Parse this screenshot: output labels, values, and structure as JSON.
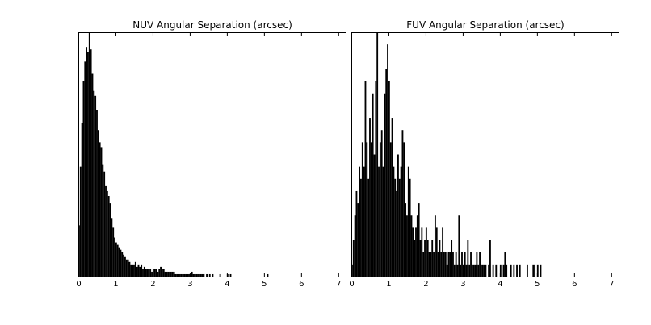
{
  "chart_data": [
    {
      "type": "bar",
      "subtype": "histogram",
      "title": "NUV Angular Separation (arcsec)",
      "xlabel": "",
      "ylabel": "",
      "xlim": [
        0,
        7.2
      ],
      "ylim": [
        0,
        1
      ],
      "y_tick_labels_shown": false,
      "grid": false,
      "bin_width": 0.04,
      "x_ticks": [
        "0",
        "1",
        "2",
        "3",
        "4",
        "5",
        "6",
        "7"
      ],
      "x": [
        0.02,
        0.06,
        0.1,
        0.14,
        0.18,
        0.22,
        0.26,
        0.3,
        0.34,
        0.38,
        0.42,
        0.46,
        0.5,
        0.54,
        0.58,
        0.62,
        0.66,
        0.7,
        0.74,
        0.78,
        0.82,
        0.86,
        0.9,
        0.94,
        0.98,
        1.02,
        1.06,
        1.1,
        1.14,
        1.18,
        1.22,
        1.26,
        1.3,
        1.34,
        1.38,
        1.42,
        1.46,
        1.5,
        1.54,
        1.58,
        1.62,
        1.66,
        1.7,
        1.74,
        1.78,
        1.82,
        1.86,
        1.9,
        1.94,
        1.98,
        2.02,
        2.06,
        2.1,
        2.14,
        2.18,
        2.22,
        2.26,
        2.3,
        2.34,
        2.38,
        2.42,
        2.46,
        2.5,
        2.54,
        2.58,
        2.62,
        2.66,
        2.7,
        2.74,
        2.78,
        2.82,
        2.86,
        2.9,
        2.94,
        2.98,
        3.02,
        3.06,
        3.1,
        3.14,
        3.18,
        3.22,
        3.26,
        3.3,
        3.34,
        3.38,
        3.42,
        3.46,
        3.5,
        3.54,
        3.58,
        3.62,
        3.66,
        3.7,
        3.74,
        3.78,
        3.82,
        3.86,
        3.9,
        3.94,
        3.98,
        4.02,
        4.06,
        4.1,
        4.14,
        4.18,
        4.22,
        4.26,
        4.3,
        4.34,
        4.38,
        4.42,
        4.46,
        4.5,
        4.54,
        4.58,
        4.62,
        4.66,
        4.7,
        4.74,
        4.78,
        4.82,
        4.86,
        4.9,
        4.94,
        4.98,
        5.02,
        5.06,
        5.1,
        5.14,
        5.18
      ],
      "values": [
        0.21,
        0.45,
        0.63,
        0.8,
        0.88,
        0.94,
        0.92,
        1.0,
        0.93,
        0.83,
        0.76,
        0.74,
        0.68,
        0.6,
        0.55,
        0.53,
        0.46,
        0.43,
        0.37,
        0.35,
        0.33,
        0.3,
        0.24,
        0.2,
        0.16,
        0.14,
        0.13,
        0.12,
        0.11,
        0.1,
        0.09,
        0.08,
        0.07,
        0.07,
        0.06,
        0.05,
        0.05,
        0.05,
        0.06,
        0.04,
        0.05,
        0.04,
        0.05,
        0.03,
        0.04,
        0.03,
        0.03,
        0.03,
        0.03,
        0.02,
        0.03,
        0.03,
        0.03,
        0.02,
        0.03,
        0.04,
        0.03,
        0.03,
        0.02,
        0.02,
        0.02,
        0.02,
        0.02,
        0.02,
        0.02,
        0.01,
        0.01,
        0.01,
        0.01,
        0.01,
        0.01,
        0.01,
        0.01,
        0.01,
        0.01,
        0.01,
        0.02,
        0.01,
        0.01,
        0.01,
        0.01,
        0.01,
        0.01,
        0.01,
        0.01,
        0.0,
        0.01,
        0.0,
        0.01,
        0.0,
        0.01,
        0.0,
        0.0,
        0.0,
        0.0,
        0.01,
        0.0,
        0.0,
        0.0,
        0.0,
        0.01,
        0.0,
        0.01,
        0.0,
        0.0,
        0.0,
        0.0,
        0.0,
        0.0,
        0.0,
        0.0,
        0.0,
        0.0,
        0.0,
        0.0,
        0.0,
        0.0,
        0.0,
        0.0,
        0.0,
        0.0,
        0.0,
        0.0,
        0.0,
        0.0,
        0.0,
        0.0,
        0.01,
        0.0,
        0.0
      ]
    },
    {
      "type": "bar",
      "subtype": "histogram",
      "title": "FUV Angular Separation (arcsec)",
      "xlabel": "",
      "ylabel": "",
      "xlim": [
        0,
        7.2
      ],
      "ylim": [
        0,
        1
      ],
      "y_tick_labels_shown": false,
      "grid": false,
      "bin_width": 0.04,
      "x_ticks": [
        "0",
        "1",
        "2",
        "3",
        "4",
        "5",
        "6",
        "7"
      ],
      "x": [
        0.02,
        0.06,
        0.1,
        0.14,
        0.18,
        0.22,
        0.26,
        0.3,
        0.34,
        0.38,
        0.42,
        0.46,
        0.5,
        0.54,
        0.58,
        0.62,
        0.66,
        0.7,
        0.74,
        0.78,
        0.82,
        0.86,
        0.9,
        0.94,
        0.98,
        1.02,
        1.06,
        1.1,
        1.14,
        1.18,
        1.22,
        1.26,
        1.3,
        1.34,
        1.38,
        1.42,
        1.46,
        1.5,
        1.54,
        1.58,
        1.62,
        1.66,
        1.7,
        1.74,
        1.78,
        1.82,
        1.86,
        1.9,
        1.94,
        1.98,
        2.02,
        2.06,
        2.1,
        2.14,
        2.18,
        2.22,
        2.26,
        2.3,
        2.34,
        2.38,
        2.42,
        2.46,
        2.5,
        2.54,
        2.58,
        2.62,
        2.66,
        2.7,
        2.74,
        2.78,
        2.82,
        2.86,
        2.9,
        2.94,
        2.98,
        3.02,
        3.06,
        3.1,
        3.14,
        3.18,
        3.22,
        3.26,
        3.3,
        3.34,
        3.38,
        3.42,
        3.46,
        3.5,
        3.54,
        3.58,
        3.62,
        3.66,
        3.7,
        3.74,
        3.78,
        3.82,
        3.86,
        3.9,
        3.94,
        3.98,
        4.02,
        4.06,
        4.1,
        4.14,
        4.18,
        4.22,
        4.26,
        4.3,
        4.34,
        4.38,
        4.42,
        4.46,
        4.5,
        4.54,
        4.58,
        4.62,
        4.66,
        4.7,
        4.74,
        4.78,
        4.82,
        4.86,
        4.9,
        4.94,
        4.98,
        5.02,
        5.06,
        5.1
      ],
      "values": [
        0.05,
        0.15,
        0.25,
        0.35,
        0.3,
        0.45,
        0.4,
        0.55,
        0.45,
        0.8,
        0.55,
        0.4,
        0.65,
        0.55,
        0.75,
        0.5,
        0.8,
        1.0,
        0.45,
        0.55,
        0.6,
        0.45,
        0.75,
        0.85,
        0.95,
        0.8,
        0.55,
        0.65,
        0.45,
        0.4,
        0.35,
        0.5,
        0.4,
        0.45,
        0.6,
        0.55,
        0.3,
        0.25,
        0.45,
        0.4,
        0.25,
        0.2,
        0.15,
        0.2,
        0.25,
        0.3,
        0.15,
        0.2,
        0.1,
        0.15,
        0.2,
        0.15,
        0.1,
        0.1,
        0.15,
        0.1,
        0.25,
        0.2,
        0.1,
        0.15,
        0.1,
        0.2,
        0.1,
        0.1,
        0.05,
        0.1,
        0.1,
        0.15,
        0.1,
        0.05,
        0.1,
        0.05,
        0.25,
        0.05,
        0.1,
        0.05,
        0.1,
        0.05,
        0.15,
        0.05,
        0.1,
        0.05,
        0.05,
        0.05,
        0.1,
        0.05,
        0.1,
        0.05,
        0.05,
        0.05,
        0.05,
        0.0,
        0.05,
        0.15,
        0.0,
        0.05,
        0.0,
        0.05,
        0.0,
        0.0,
        0.05,
        0.0,
        0.05,
        0.1,
        0.05,
        0.0,
        0.0,
        0.05,
        0.0,
        0.05,
        0.0,
        0.05,
        0.0,
        0.05,
        0.0,
        0.0,
        0.0,
        0.0,
        0.05,
        0.0,
        0.0,
        0.0,
        0.05,
        0.05,
        0.0,
        0.05,
        0.0,
        0.05
      ]
    }
  ]
}
